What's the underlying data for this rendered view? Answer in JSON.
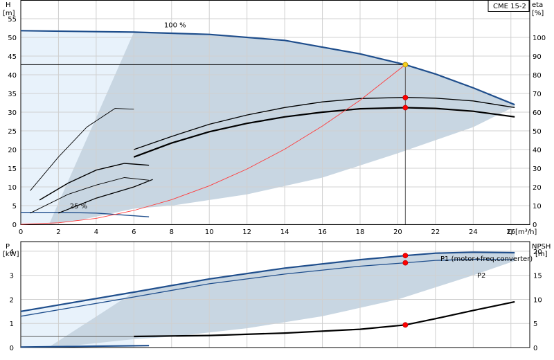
{
  "chart_data": [
    {
      "type": "line",
      "panel": "head_efficiency",
      "title": "CME 15-2",
      "xlabel": "Q [m³/h]",
      "ylabel_left": "H",
      "ylabel_left_unit": "[m]",
      "ylabel_right": "eta",
      "ylabel_right_unit": "[%]",
      "xlim": [
        0,
        27
      ],
      "ylim_left": [
        0,
        60
      ],
      "ylim_right": [
        0,
        120
      ],
      "xticks": [
        0,
        2,
        4,
        6,
        8,
        10,
        12,
        14,
        16,
        18,
        20,
        22,
        24,
        26
      ],
      "yticks_left": [
        0,
        5,
        10,
        15,
        20,
        25,
        30,
        35,
        40,
        45,
        50,
        55
      ],
      "yticks_right": [
        0,
        10,
        20,
        30,
        40,
        50,
        60,
        70,
        80,
        90,
        100
      ],
      "annotations": [
        "100 %",
        "25 %"
      ],
      "duty_point": {
        "q": 20.4,
        "h": 42.7
      },
      "series": [
        {
          "key": "h100",
          "color": "#1f4e8c",
          "axis": "left",
          "points": [
            [
              0,
              51.8
            ],
            [
              6,
              51.4
            ],
            [
              10,
              50.8
            ],
            [
              14,
              49.2
            ],
            [
              18,
              45.6
            ],
            [
              20.4,
              42.7
            ],
            [
              22,
              40.2
            ],
            [
              24,
              36.5
            ],
            [
              26.2,
              32
            ]
          ]
        },
        {
          "key": "h25",
          "color": "#1f4e8c",
          "axis": "left",
          "points": [
            [
              0,
              3.2
            ],
            [
              2,
              3.2
            ],
            [
              4,
              3
            ],
            [
              6.8,
              2
            ]
          ]
        },
        {
          "key": "eta_motor_pump",
          "color": "#000000",
          "axis": "right",
          "points": [
            [
              6,
              36
            ],
            [
              8,
              43.5
            ],
            [
              10,
              49.5
            ],
            [
              12,
              54
            ],
            [
              14,
              57.5
            ],
            [
              16,
              60
            ],
            [
              18,
              61.8
            ],
            [
              20.4,
              62.4
            ],
            [
              22,
              62
            ],
            [
              24,
              60.5
            ],
            [
              26.2,
              57.5
            ]
          ]
        },
        {
          "key": "eta_pump",
          "color": "#000000",
          "axis": "right",
          "points": [
            [
              6,
              40
            ],
            [
              8,
              47
            ],
            [
              10,
              53.5
            ],
            [
              12,
              58.5
            ],
            [
              14,
              62.5
            ],
            [
              16,
              65.5
            ],
            [
              18,
              67.3
            ],
            [
              20.4,
              67.9
            ],
            [
              22,
              67.5
            ],
            [
              24,
              66
            ],
            [
              26.2,
              62.5
            ]
          ]
        },
        {
          "key": "system_curve",
          "color": "#ff3b3b",
          "axis": "left",
          "points": [
            [
              0,
              0
            ],
            [
              2,
              0.4
            ],
            [
              4,
              1.6
            ],
            [
              6,
              3.7
            ],
            [
              8,
              6.6
            ],
            [
              10,
              10.3
            ],
            [
              12,
              14.8
            ],
            [
              14,
              20.1
            ],
            [
              16,
              26.3
            ],
            [
              18,
              33.2
            ],
            [
              20.4,
              42.7
            ]
          ]
        },
        {
          "key": "h_ramp_1",
          "color": "#000000",
          "axis": "left",
          "points": [
            [
              0.5,
              9
            ],
            [
              2,
              18
            ],
            [
              3.5,
              26
            ],
            [
              5,
              31
            ],
            [
              6,
              30.8
            ]
          ]
        },
        {
          "key": "h_ramp_2",
          "color": "#000000",
          "axis": "left",
          "points": [
            [
              1,
              6.5
            ],
            [
              2.5,
              11
            ],
            [
              4,
              14.5
            ],
            [
              5.5,
              16.3
            ],
            [
              6.8,
              15.8
            ]
          ]
        },
        {
          "key": "eta_low_1",
          "color": "#000000",
          "axis": "right",
          "points": [
            [
              2,
              6
            ],
            [
              4,
              14
            ],
            [
              6,
              20
            ],
            [
              7,
              24
            ]
          ]
        },
        {
          "key": "eta_low_2",
          "color": "#000000",
          "axis": "right",
          "points": [
            [
              0.5,
              6
            ],
            [
              2.5,
              16
            ],
            [
              4,
              21
            ],
            [
              5.5,
              25
            ],
            [
              6.8,
              23.6
            ]
          ]
        }
      ],
      "markers": [
        {
          "q": 20.4,
          "h": 42.7,
          "color": "#f5d020"
        },
        {
          "q": 20.4,
          "h": 33.9,
          "color": "#ff0000"
        },
        {
          "q": 20.4,
          "h": 31.2,
          "color": "#ff0000"
        }
      ]
    },
    {
      "type": "line",
      "panel": "power_npsh",
      "xlabel": "Q [m³/h]",
      "ylabel_left": "P",
      "ylabel_left_unit": "[kW]",
      "ylabel_right": "NPSH",
      "ylabel_right_unit": "[m]",
      "xlim": [
        0,
        27
      ],
      "ylim_left": [
        0,
        4.4
      ],
      "ylim_right": [
        0,
        22
      ],
      "yticks_left": [
        0,
        1,
        2,
        3,
        4
      ],
      "yticks_right": [
        0,
        5,
        10,
        15,
        20
      ],
      "labels": {
        "p1": "P1 (motor+freq.converter)",
        "p2": "P2"
      },
      "series": [
        {
          "key": "p1",
          "color": "#1f4e8c",
          "axis": "left",
          "points": [
            [
              0,
              1.5
            ],
            [
              6,
              2.3
            ],
            [
              10,
              2.85
            ],
            [
              14,
              3.3
            ],
            [
              18,
              3.65
            ],
            [
              20.4,
              3.82
            ],
            [
              22,
              3.92
            ],
            [
              24,
              3.96
            ],
            [
              26.2,
              3.94
            ]
          ]
        },
        {
          "key": "p2",
          "color": "#1f4e8c",
          "axis": "left",
          "points": [
            [
              0,
              1.3
            ],
            [
              6,
              2.1
            ],
            [
              10,
              2.65
            ],
            [
              14,
              3.05
            ],
            [
              18,
              3.38
            ],
            [
              20.4,
              3.52
            ],
            [
              22,
              3.62
            ],
            [
              24,
              3.66
            ],
            [
              26.2,
              3.65
            ]
          ]
        },
        {
          "key": "npsh",
          "color": "#000000",
          "axis": "right",
          "points": [
            [
              6,
              2.3
            ],
            [
              10,
              2.5
            ],
            [
              14,
              3
            ],
            [
              18,
              3.8
            ],
            [
              20.4,
              4.7
            ],
            [
              22,
              6
            ],
            [
              24,
              7.7
            ],
            [
              26.2,
              9.5
            ]
          ]
        },
        {
          "key": "p_low",
          "color": "#1f4e8c",
          "axis": "left",
          "points": [
            [
              0,
              0.02
            ],
            [
              6.8,
              0.08
            ]
          ]
        },
        {
          "key": "npsh_low",
          "color": "#555555",
          "axis": "right",
          "points": [
            [
              0,
              2.3
            ],
            [
              6,
              2.3
            ]
          ]
        }
      ],
      "markers": [
        {
          "q": 20.4,
          "v": 3.82,
          "axis": "left",
          "color": "#ff0000"
        },
        {
          "q": 20.4,
          "v": 3.52,
          "axis": "left",
          "color": "#ff0000"
        },
        {
          "q": 20.4,
          "v": 4.7,
          "axis": "right",
          "color": "#ff0000"
        }
      ]
    }
  ]
}
